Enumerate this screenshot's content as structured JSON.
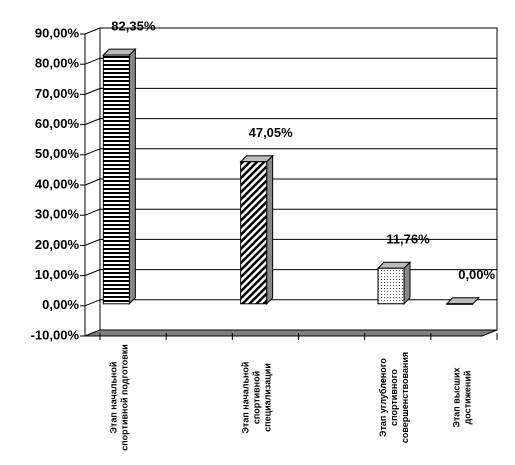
{
  "chart_data": {
    "type": "bar",
    "categories": [
      "Этап начальной спортивной подготовки",
      null,
      "Этап начальной спортивной специализации",
      null,
      "Этап углубленого спортивного совершенствования",
      "Этап высших достижений"
    ],
    "values": [
      82.35,
      null,
      47.05,
      null,
      11.76,
      0
    ],
    "value_labels": [
      "82,35%",
      null,
      "47,05%",
      null,
      "11,76%",
      "0,00%"
    ],
    "ylim": [
      -10,
      90
    ],
    "yticks": [
      {
        "value": -10,
        "label": "-10,00%"
      },
      {
        "value": 0,
        "label": "0,00%"
      },
      {
        "value": 10,
        "label": "10,00%"
      },
      {
        "value": 20,
        "label": "20,00%"
      },
      {
        "value": 30,
        "label": "30,00%"
      },
      {
        "value": 40,
        "label": "40,00%"
      },
      {
        "value": 50,
        "label": "50,00%"
      },
      {
        "value": 60,
        "label": "60,00%"
      },
      {
        "value": 70,
        "label": "70,00%"
      },
      {
        "value": 80,
        "label": "80,00%"
      },
      {
        "value": 90,
        "label": "90,00%"
      }
    ],
    "grid": true
  }
}
